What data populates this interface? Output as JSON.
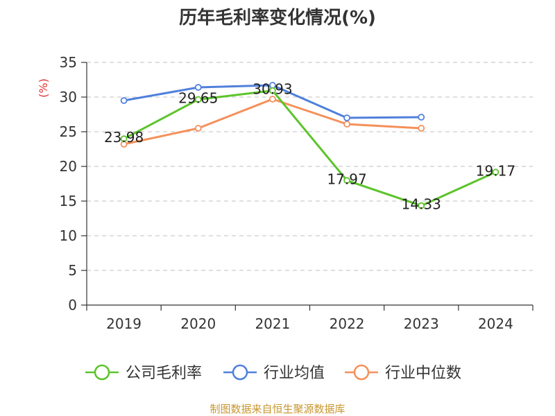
{
  "chart_data": {
    "type": "line",
    "title": "历年毛利率变化情况(%)",
    "ylabel": "(%)",
    "xlabel": "",
    "categories": [
      "2019",
      "2020",
      "2021",
      "2022",
      "2023",
      "2024"
    ],
    "ylim": [
      0,
      35
    ],
    "yticks": [
      0,
      5,
      10,
      15,
      20,
      25,
      30,
      35
    ],
    "grid": true,
    "legend_position": "bottom",
    "series": [
      {
        "name": "公司毛利率",
        "color": "#5cc42a",
        "values": [
          23.98,
          29.65,
          30.93,
          17.97,
          14.33,
          19.17
        ],
        "labels": [
          "23.98",
          "29.65",
          "30.93",
          "17.97",
          "14.33",
          "19.17"
        ]
      },
      {
        "name": "行业均值",
        "color": "#4f80db",
        "values": [
          29.5,
          31.4,
          31.7,
          27.0,
          27.1,
          null
        ]
      },
      {
        "name": "行业中位数",
        "color": "#f5905a",
        "values": [
          23.2,
          25.5,
          29.7,
          26.1,
          25.5,
          null
        ]
      }
    ]
  },
  "source_text": "制图数据来自恒生聚源数据库"
}
